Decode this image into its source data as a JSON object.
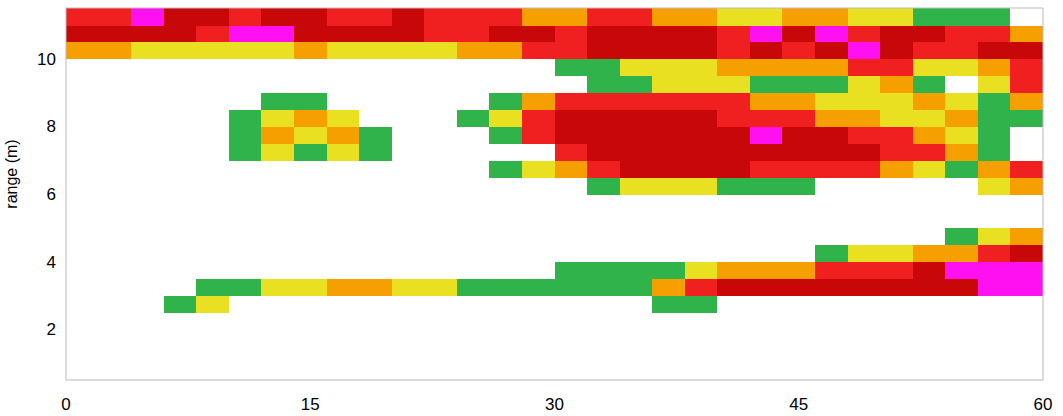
{
  "chart_data": {
    "type": "heatmap",
    "y_label": "range (m)",
    "xlim": [
      0,
      60
    ],
    "ylim": [
      0.5,
      11.5
    ],
    "xticks": [
      0,
      15,
      30,
      45,
      60
    ],
    "yticks": [
      2,
      4,
      6,
      8,
      10
    ],
    "grid": false,
    "x_bins": [
      0,
      2,
      4,
      6,
      8,
      10,
      12,
      14,
      16,
      18,
      20,
      22,
      24,
      26,
      28,
      30,
      32,
      34,
      36,
      38,
      40,
      42,
      44,
      46,
      48,
      50,
      52,
      54,
      56,
      58,
      60
    ],
    "y_bins": [
      0.5,
      1,
      1.5,
      2,
      2.5,
      3,
      3.5,
      4,
      4.5,
      5,
      5.5,
      6,
      6.5,
      7,
      7.5,
      8,
      8.5,
      9,
      9.5,
      10,
      10.5,
      11,
      11.5
    ],
    "colors": [
      "#ffffff",
      "#2fb34a",
      "#e8e020",
      "#f5a000",
      "#f02020",
      "#c80808",
      "#ff10f0"
    ],
    "cells": [
      [
        0,
        0,
        0,
        0,
        0,
        0,
        0,
        0,
        0,
        0,
        0,
        0,
        0,
        0,
        0,
        0,
        0,
        0,
        0,
        0,
        0,
        0,
        0,
        0,
        0,
        0,
        0,
        0,
        0,
        0
      ],
      [
        0,
        0,
        0,
        0,
        0,
        0,
        0,
        0,
        0,
        0,
        0,
        0,
        0,
        0,
        0,
        0,
        0,
        0,
        0,
        0,
        0,
        0,
        0,
        0,
        0,
        0,
        0,
        0,
        0,
        0
      ],
      [
        0,
        0,
        0,
        0,
        0,
        0,
        0,
        0,
        0,
        0,
        0,
        0,
        0,
        0,
        0,
        0,
        0,
        0,
        0,
        0,
        0,
        0,
        0,
        0,
        0,
        0,
        0,
        0,
        0,
        0
      ],
      [
        0,
        0,
        0,
        0,
        0,
        0,
        0,
        0,
        0,
        0,
        0,
        0,
        0,
        0,
        0,
        0,
        0,
        0,
        0,
        0,
        0,
        0,
        0,
        0,
        0,
        0,
        0,
        0,
        0,
        0
      ],
      [
        0,
        0,
        0,
        1,
        2,
        0,
        0,
        0,
        0,
        0,
        0,
        0,
        0,
        0,
        0,
        0,
        0,
        0,
        1,
        1,
        0,
        0,
        0,
        0,
        0,
        0,
        0,
        0,
        0,
        0
      ],
      [
        0,
        0,
        0,
        0,
        1,
        1,
        2,
        2,
        3,
        3,
        2,
        2,
        1,
        1,
        1,
        1,
        1,
        1,
        3,
        4,
        5,
        5,
        5,
        5,
        5,
        5,
        5,
        5,
        6,
        6
      ],
      [
        0,
        0,
        0,
        0,
        0,
        0,
        0,
        0,
        0,
        0,
        0,
        0,
        0,
        0,
        0,
        1,
        1,
        1,
        1,
        2,
        3,
        3,
        3,
        4,
        4,
        4,
        5,
        6,
        6,
        6
      ],
      [
        0,
        0,
        0,
        0,
        0,
        0,
        0,
        0,
        0,
        0,
        0,
        0,
        0,
        0,
        0,
        0,
        0,
        0,
        0,
        0,
        0,
        0,
        0,
        1,
        2,
        2,
        3,
        3,
        4,
        5
      ],
      [
        0,
        0,
        0,
        0,
        0,
        0,
        0,
        0,
        0,
        0,
        0,
        0,
        0,
        0,
        0,
        0,
        0,
        0,
        0,
        0,
        0,
        0,
        0,
        0,
        0,
        0,
        0,
        1,
        2,
        3
      ],
      [
        0,
        0,
        0,
        0,
        0,
        0,
        0,
        0,
        0,
        0,
        0,
        0,
        0,
        0,
        0,
        0,
        0,
        0,
        0,
        0,
        0,
        0,
        0,
        0,
        0,
        0,
        0,
        0,
        0,
        0
      ],
      [
        0,
        0,
        0,
        0,
        0,
        0,
        0,
        0,
        0,
        0,
        0,
        0,
        0,
        0,
        0,
        0,
        0,
        0,
        0,
        0,
        0,
        0,
        0,
        0,
        0,
        0,
        0,
        0,
        0,
        0
      ],
      [
        0,
        0,
        0,
        0,
        0,
        0,
        0,
        0,
        0,
        0,
        0,
        0,
        0,
        0,
        0,
        0,
        1,
        2,
        2,
        2,
        1,
        1,
        1,
        0,
        0,
        0,
        0,
        0,
        2,
        3
      ],
      [
        0,
        0,
        0,
        0,
        0,
        0,
        0,
        0,
        0,
        0,
        0,
        0,
        0,
        1,
        2,
        3,
        4,
        5,
        5,
        5,
        5,
        4,
        4,
        4,
        4,
        3,
        2,
        1,
        3,
        4
      ],
      [
        0,
        0,
        0,
        0,
        0,
        1,
        2,
        1,
        2,
        1,
        0,
        0,
        0,
        0,
        0,
        4,
        5,
        5,
        5,
        5,
        5,
        5,
        5,
        5,
        5,
        4,
        4,
        3,
        1,
        0
      ],
      [
        0,
        0,
        0,
        0,
        0,
        1,
        3,
        2,
        3,
        1,
        0,
        0,
        0,
        1,
        4,
        5,
        5,
        5,
        5,
        5,
        5,
        6,
        5,
        5,
        4,
        4,
        3,
        2,
        1,
        0
      ],
      [
        0,
        0,
        0,
        0,
        0,
        1,
        2,
        3,
        2,
        0,
        0,
        0,
        1,
        2,
        4,
        5,
        5,
        5,
        5,
        5,
        4,
        4,
        4,
        3,
        3,
        2,
        2,
        3,
        1,
        1
      ],
      [
        0,
        0,
        0,
        0,
        0,
        0,
        1,
        1,
        0,
        0,
        0,
        0,
        0,
        1,
        3,
        4,
        4,
        4,
        4,
        4,
        4,
        3,
        3,
        2,
        2,
        2,
        3,
        2,
        1,
        3
      ],
      [
        0,
        0,
        0,
        0,
        0,
        0,
        0,
        0,
        0,
        0,
        0,
        0,
        0,
        0,
        0,
        0,
        1,
        1,
        2,
        2,
        2,
        1,
        1,
        1,
        2,
        3,
        1,
        0,
        2,
        4
      ],
      [
        0,
        0,
        0,
        0,
        0,
        0,
        0,
        0,
        0,
        0,
        0,
        0,
        0,
        0,
        0,
        1,
        1,
        2,
        2,
        2,
        3,
        3,
        3,
        3,
        4,
        4,
        2,
        2,
        3,
        4
      ],
      [
        3,
        3,
        2,
        2,
        2,
        2,
        2,
        3,
        2,
        2,
        2,
        2,
        3,
        3,
        4,
        4,
        5,
        5,
        5,
        5,
        4,
        5,
        4,
        5,
        6,
        5,
        4,
        4,
        5,
        5
      ],
      [
        5,
        5,
        5,
        5,
        4,
        6,
        6,
        5,
        5,
        5,
        5,
        4,
        4,
        5,
        5,
        4,
        5,
        5,
        5,
        5,
        4,
        6,
        5,
        6,
        4,
        5,
        5,
        4,
        4,
        3
      ],
      [
        4,
        4,
        6,
        5,
        5,
        4,
        5,
        5,
        4,
        4,
        5,
        4,
        4,
        4,
        3,
        3,
        4,
        4,
        3,
        3,
        2,
        2,
        3,
        3,
        2,
        2,
        1,
        1,
        1,
        0
      ]
    ]
  }
}
